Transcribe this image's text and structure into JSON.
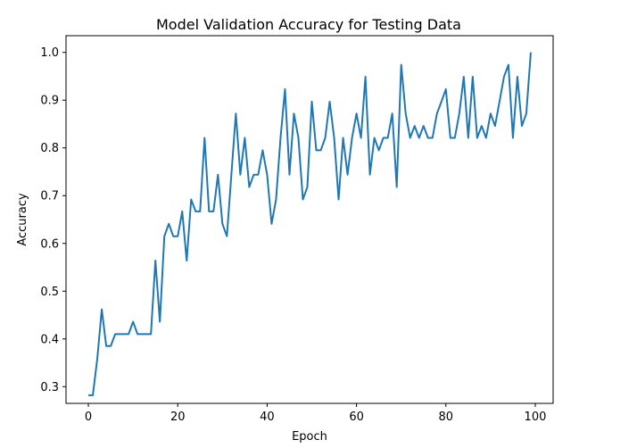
{
  "chart_data": {
    "type": "line",
    "title": "Model Validation Accuracy for Testing Data",
    "xlabel": "Epoch",
    "ylabel": "Accuracy",
    "xlim": [
      -5,
      104
    ],
    "ylim": [
      0.265,
      1.035
    ],
    "xticks": [
      0,
      20,
      40,
      60,
      80,
      100
    ],
    "yticks": [
      0.3,
      0.4,
      0.5,
      0.6,
      0.7,
      0.8,
      0.9,
      1.0
    ],
    "xtick_labels": [
      "0",
      "20",
      "40",
      "60",
      "80",
      "100"
    ],
    "ytick_labels": [
      "0.3",
      "0.4",
      "0.5",
      "0.6",
      "0.7",
      "0.8",
      "0.9",
      "1.0"
    ],
    "grid": false,
    "line_color": "#1f77b4",
    "x": [
      0,
      1,
      2,
      3,
      4,
      5,
      6,
      7,
      8,
      9,
      10,
      11,
      12,
      13,
      14,
      15,
      16,
      17,
      18,
      19,
      20,
      21,
      22,
      23,
      24,
      25,
      26,
      27,
      28,
      29,
      30,
      31,
      32,
      33,
      34,
      35,
      36,
      37,
      38,
      39,
      40,
      41,
      42,
      43,
      44,
      45,
      46,
      47,
      48,
      49,
      50,
      51,
      52,
      53,
      54,
      55,
      56,
      57,
      58,
      59,
      60,
      61,
      62,
      63,
      64,
      65,
      66,
      67,
      68,
      69,
      70,
      71,
      72,
      73,
      74,
      75,
      76,
      77,
      78,
      79,
      80,
      81,
      82,
      83,
      84,
      85,
      86,
      87,
      88,
      89,
      90,
      91,
      92,
      93,
      94,
      95,
      96,
      97,
      98,
      99
    ],
    "y": [
      0.282,
      0.282,
      0.359,
      0.462,
      0.385,
      0.385,
      0.41,
      0.41,
      0.41,
      0.41,
      0.436,
      0.41,
      0.41,
      0.41,
      0.41,
      0.564,
      0.436,
      0.615,
      0.641,
      0.615,
      0.615,
      0.667,
      0.564,
      0.692,
      0.667,
      0.667,
      0.821,
      0.667,
      0.667,
      0.744,
      0.641,
      0.615,
      0.744,
      0.872,
      0.744,
      0.821,
      0.718,
      0.744,
      0.744,
      0.795,
      0.744,
      0.641,
      0.692,
      0.821,
      0.923,
      0.744,
      0.872,
      0.821,
      0.692,
      0.718,
      0.897,
      0.795,
      0.795,
      0.821,
      0.897,
      0.821,
      0.692,
      0.821,
      0.744,
      0.821,
      0.872,
      0.821,
      0.949,
      0.744,
      0.821,
      0.795,
      0.821,
      0.821,
      0.872,
      0.718,
      0.974,
      0.872,
      0.821,
      0.846,
      0.821,
      0.846,
      0.821,
      0.821,
      0.872,
      0.897,
      0.923,
      0.821,
      0.821,
      0.872,
      0.949,
      0.821,
      0.949,
      0.821,
      0.846,
      0.821,
      0.872,
      0.846,
      0.897,
      0.949,
      0.974,
      0.821,
      0.949,
      0.846,
      0.872,
      1.0
    ]
  }
}
